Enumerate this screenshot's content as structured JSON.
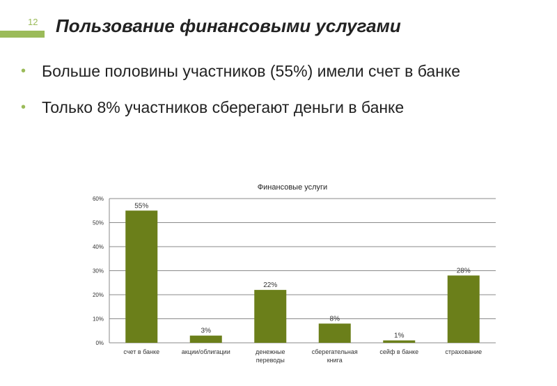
{
  "slide": {
    "number": "12",
    "title": "Пользование финансовыми услугами",
    "bullets": [
      "Больше половины участников (55%) имели счет в банке",
      "Только 8% участников сберегают деньги в банке"
    ],
    "accent_color": "#9bbb59"
  },
  "chart_data": {
    "type": "bar",
    "title": "Финансовые услуги",
    "xlabel": "",
    "ylabel": "",
    "categories": [
      [
        "счет в банке"
      ],
      [
        "акции/облигации"
      ],
      [
        "денежные",
        "переводы"
      ],
      [
        "сберегательная",
        "книга"
      ],
      [
        "сейф в банке"
      ],
      [
        "страхование"
      ]
    ],
    "values": [
      55,
      3,
      22,
      8,
      1,
      28
    ],
    "data_labels": [
      "55%",
      "3%",
      "22%",
      "8%",
      "1%",
      "28%"
    ],
    "ylim": [
      0,
      60
    ],
    "yticks": [
      "0%",
      "10%",
      "20%",
      "30%",
      "40%",
      "50%",
      "60%"
    ],
    "grid": true,
    "legend": "none",
    "bar_color": "#6b7f1a"
  }
}
